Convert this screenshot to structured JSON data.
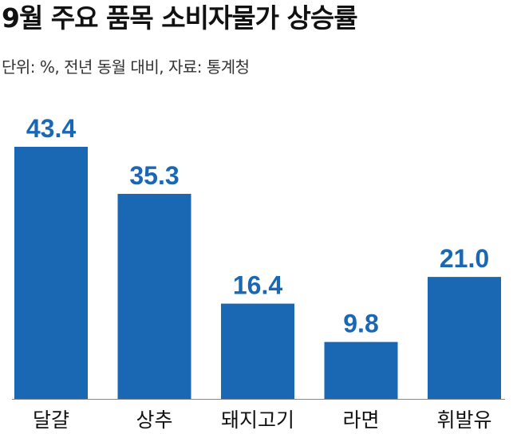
{
  "header": {
    "title": "9월 주요 품목 소비자물가 상승률",
    "subtitle": "단위: %, 전년 동월 대비, 자료: 통계청"
  },
  "colors": {
    "bar": "#1a67b4",
    "value_label": "#1a67b4",
    "axis": "#888888",
    "text": "#111111"
  },
  "chart_data": {
    "type": "bar",
    "categories": [
      "달걀",
      "상추",
      "돼지고기",
      "라면",
      "휘발유"
    ],
    "values": [
      43.4,
      35.3,
      16.4,
      9.8,
      21.0
    ],
    "value_labels": [
      "43.4",
      "35.3",
      "16.4",
      "9.8",
      "21.0"
    ],
    "title": "9월 주요 품목 소비자물가 상승률",
    "subtitle": "단위: %, 전년 동월 대비, 자료: 통계청",
    "xlabel": "",
    "ylabel": "",
    "ylim": [
      0,
      43.4
    ],
    "grid": false,
    "legend": "none"
  }
}
